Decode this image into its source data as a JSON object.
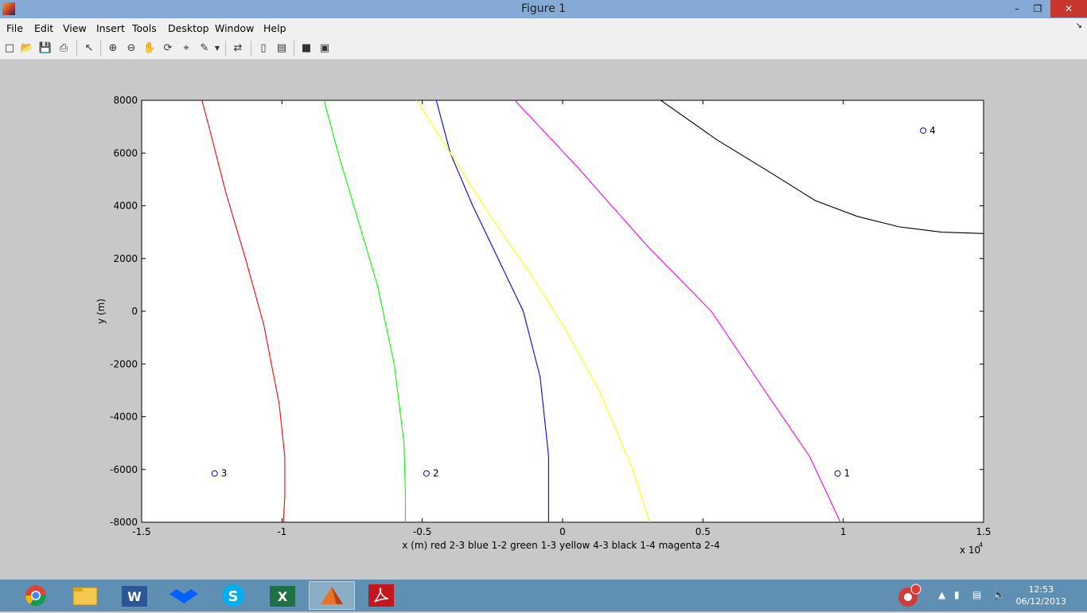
{
  "window": {
    "title": "Figure 1"
  },
  "menu": [
    "File",
    "Edit",
    "View",
    "Insert",
    "Tools",
    "Desktop",
    "Window",
    "Help"
  ],
  "toolbar": [
    "new-figure",
    "open-file",
    "save",
    "print",
    "edit-plot",
    "zoom-in",
    "zoom-out",
    "pan",
    "rotate-3d",
    "data-cursor",
    "brush",
    "link-plot",
    "colorbar",
    "legend",
    "hide-plot-tools",
    "show-plot-tools"
  ],
  "chart_data": {
    "type": "line",
    "xlabel": "x (m) red 2-3  blue 1-2  green 1-3   yellow 4-3   black  1-4   magenta  2-4",
    "ylabel": "y (m)",
    "x_exponent_label": "x 10",
    "x_exponent_power": "4",
    "xlim": [
      -15000,
      15000
    ],
    "ylim": [
      -8000,
      8000
    ],
    "xticks": [
      -15000,
      -10000,
      -5000,
      0,
      5000,
      10000,
      15000
    ],
    "xtick_labels": [
      "-1.5",
      "-1",
      "-0.5",
      "0",
      "0.5",
      "1",
      "1.5"
    ],
    "yticks": [
      -8000,
      -6000,
      -4000,
      -2000,
      0,
      2000,
      4000,
      6000,
      8000
    ],
    "ytick_labels": [
      "-8000",
      "-6000",
      "-4000",
      "-2000",
      "0",
      "2000",
      "4000",
      "6000",
      "8000"
    ],
    "grid": false,
    "colors": {
      "red": "#ff0000",
      "blue": "#0000ff",
      "green": "#00ff00",
      "yellow": "#ffff00",
      "black": "#000000",
      "magenta": "#ff00ff",
      "marker": "#0000ff"
    },
    "series": [
      {
        "color": "red",
        "x": [
          -12850,
          -12600,
          -12000,
          -11300,
          -10650,
          -10100,
          -9900,
          -9900,
          -9950
        ],
        "y": [
          8000,
          7000,
          4500,
          2000,
          -500,
          -3500,
          -5500,
          -7000,
          -8000
        ]
      },
      {
        "color": "green",
        "x": [
          -8500,
          -8000,
          -7300,
          -6600,
          -6000,
          -5650,
          -5600,
          -5600
        ],
        "y": [
          8000,
          6000,
          3500,
          1000,
          -2000,
          -5000,
          -7000,
          -8000
        ]
      },
      {
        "color": "blue",
        "x": [
          -4500,
          -4000,
          -3200,
          -2300,
          -1400,
          -800,
          -500,
          -500
        ],
        "y": [
          8000,
          6000,
          4000,
          2000,
          0,
          -2500,
          -5500,
          -8000
        ]
      },
      {
        "color": "yellow",
        "x": [
          -5200,
          -4000,
          -2500,
          -1200,
          0,
          1300,
          2500,
          3100
        ],
        "y": [
          8000,
          6000,
          3500,
          1500,
          -500,
          -3000,
          -6000,
          -8000
        ]
      },
      {
        "color": "magenta",
        "x": [
          -1700,
          500,
          3000,
          5300,
          7200,
          8800,
          9900
        ],
        "y": [
          8000,
          5500,
          2500,
          0,
          -3000,
          -5500,
          -8000
        ]
      },
      {
        "color": "black",
        "x": [
          3500,
          5500,
          7500,
          9000,
          10500,
          12000,
          13500,
          15000
        ],
        "y": [
          8000,
          6500,
          5200,
          4200,
          3600,
          3200,
          3000,
          2950
        ]
      }
    ],
    "points": [
      {
        "x": 9800,
        "y": -6150,
        "label": "1"
      },
      {
        "x": -4850,
        "y": -6150,
        "label": "2"
      },
      {
        "x": -12400,
        "y": -6150,
        "label": "3"
      },
      {
        "x": 12850,
        "y": 6850,
        "label": "4"
      }
    ]
  },
  "taskbar": [
    "chrome",
    "file-explorer",
    "word",
    "dropbox",
    "skype",
    "excel",
    "matlab",
    "acrobat"
  ],
  "clock": {
    "time": "12:53",
    "date": "06/12/2013"
  }
}
